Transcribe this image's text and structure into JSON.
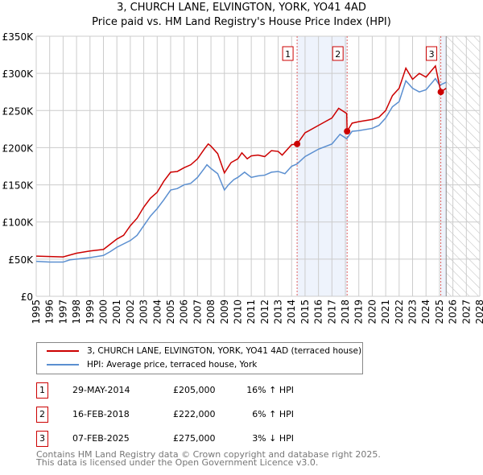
{
  "chart_data": {
    "type": "line",
    "title": "3, CHURCH LANE, ELVINGTON, YORK, YO41 4AD",
    "subtitle": "Price paid vs. HM Land Registry's House Price Index (HPI)",
    "xlim": [
      1995,
      2028
    ],
    "ylim": [
      0,
      350000
    ],
    "y_ticks": [
      0,
      50000,
      100000,
      150000,
      200000,
      250000,
      300000,
      350000
    ],
    "y_tick_labels": [
      "£0",
      "£50K",
      "£100K",
      "£150K",
      "£200K",
      "£250K",
      "£300K",
      "£350K"
    ],
    "x_ticks": [
      1995,
      1996,
      1997,
      1998,
      1999,
      2000,
      2001,
      2002,
      2003,
      2004,
      2005,
      2006,
      2007,
      2008,
      2009,
      2010,
      2011,
      2012,
      2013,
      2014,
      2015,
      2016,
      2017,
      2018,
      2019,
      2020,
      2021,
      2022,
      2023,
      2024,
      2025,
      2026,
      2027,
      2028
    ],
    "grid": true,
    "series": [
      {
        "name": "3, CHURCH LANE, ELVINGTON, YORK, YO41 4AD (terraced house)",
        "color": "#cc0000",
        "x": [
          1995,
          1997,
          1998,
          1999,
          2000,
          2000.5,
          2001,
          2001.5,
          2002,
          2002.5,
          2003,
          2003.5,
          2004,
          2004.5,
          2005,
          2005.5,
          2006,
          2006.5,
          2007,
          2007.5,
          2007.8,
          2008,
          2008.5,
          2009,
          2009.5,
          2010,
          2010.3,
          2010.7,
          2011,
          2011.5,
          2012,
          2012.5,
          2013,
          2013.3,
          2014,
          2014.41,
          2015,
          2016,
          2016.5,
          2017,
          2017.5,
          2018.1,
          2018.13,
          2018.5,
          2019,
          2020,
          2020.5,
          2021,
          2021.5,
          2022,
          2022.5,
          2023,
          2023.5,
          2024,
          2024.7,
          2025.1,
          2025.5
        ],
        "y": [
          54000,
          53000,
          58000,
          61000,
          63000,
          70000,
          77000,
          82000,
          95000,
          105000,
          120000,
          132000,
          140000,
          155000,
          167000,
          168000,
          173000,
          177000,
          185000,
          198000,
          205000,
          202000,
          192000,
          166000,
          180000,
          185000,
          193000,
          185000,
          189000,
          190000,
          188000,
          196000,
          195000,
          190000,
          204000,
          205000,
          220000,
          230000,
          235000,
          240000,
          253000,
          246000,
          222000,
          233000,
          235000,
          238000,
          241000,
          250000,
          270000,
          280000,
          307000,
          292000,
          300000,
          295000,
          310000,
          275000,
          280000
        ]
      },
      {
        "name": "HPI: Average price, terraced house, York",
        "color": "#5b8fd0",
        "x": [
          1995,
          1996,
          1997,
          1997.5,
          1998,
          1999,
          2000,
          2000.5,
          2001,
          2002,
          2002.5,
          2003,
          2003.5,
          2004,
          2004.5,
          2005,
          2005.5,
          2006,
          2006.5,
          2007,
          2007.5,
          2007.7,
          2008,
          2008.5,
          2009,
          2009.3,
          2009.7,
          2010,
          2010.5,
          2011,
          2011.5,
          2012,
          2012.5,
          2013,
          2013.5,
          2014,
          2014.4,
          2015,
          2016,
          2017,
          2017.6,
          2018.1,
          2018.5,
          2019,
          2020,
          2020.5,
          2021,
          2021.5,
          2022,
          2022.5,
          2023,
          2023.5,
          2024,
          2024.7,
          2025,
          2025.5
        ],
        "y": [
          47000,
          46000,
          46000,
          49000,
          50000,
          52000,
          55000,
          60000,
          66000,
          75000,
          82000,
          95000,
          108000,
          118000,
          130000,
          143000,
          145000,
          150000,
          152000,
          160000,
          172000,
          177000,
          172000,
          165000,
          143000,
          150000,
          157000,
          160000,
          167000,
          160000,
          162000,
          163000,
          167000,
          168000,
          165000,
          175000,
          178000,
          188000,
          198000,
          205000,
          218000,
          212000,
          222000,
          223000,
          226000,
          230000,
          240000,
          255000,
          262000,
          290000,
          280000,
          275000,
          278000,
          293000,
          284000,
          288000
        ]
      }
    ],
    "sales": [
      {
        "label": "1",
        "date": "29-MAY-2014",
        "x": 2014.41,
        "price": "£205,000",
        "value": 205000,
        "hpi": "16% ↑ HPI"
      },
      {
        "label": "2",
        "date": "16-FEB-2018",
        "x": 2018.13,
        "price": "£222,000",
        "value": 222000,
        "hpi": "6% ↑ HPI"
      },
      {
        "label": "3",
        "date": "07-FEB-2025",
        "x": 2025.1,
        "price": "£275,000",
        "value": 275000,
        "hpi": "3% ↓ HPI"
      }
    ],
    "footer": [
      "Contains HM Land Registry data © Crown copyright and database right 2025.",
      "This data is licensed under the Open Government Licence v3.0."
    ]
  }
}
